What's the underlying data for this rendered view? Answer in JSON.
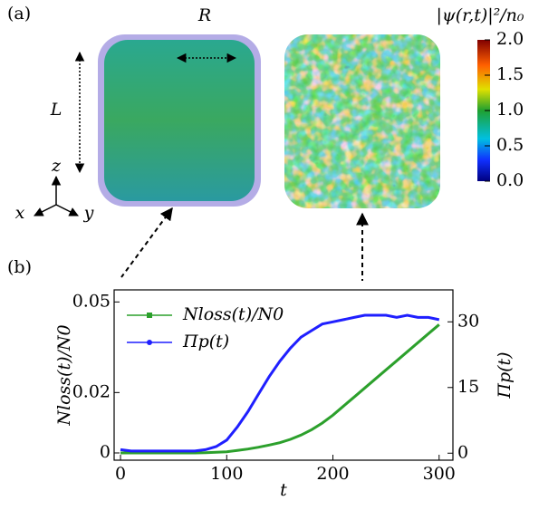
{
  "chart_data": [
    {
      "type": "colorbar",
      "panel_label": "(a)",
      "title": "|ψ(r,t)|²/n₀",
      "annotations": {
        "R": "R",
        "L": "L",
        "x": "x",
        "y": "y",
        "z": "z"
      },
      "lim": [
        0,
        2
      ],
      "ticks": [
        {
          "value": 0,
          "label": "0.0"
        },
        {
          "value": 0.5,
          "label": "0.5"
        },
        {
          "value": 1,
          "label": "1.0"
        },
        {
          "value": 1.5,
          "label": "1.5"
        },
        {
          "value": 2,
          "label": "2.0"
        }
      ]
    },
    {
      "type": "line",
      "panel_label": "(b)",
      "xlabel": "t",
      "ylabel": "Nloss(t)/N0",
      "y2label": "Πp(t)",
      "x": [
        0,
        10,
        20,
        30,
        40,
        50,
        60,
        70,
        80,
        90,
        100,
        110,
        120,
        130,
        140,
        150,
        160,
        170,
        180,
        190,
        200,
        210,
        220,
        230,
        240,
        250,
        260,
        270,
        280,
        290,
        300
      ],
      "series": [
        {
          "name": "Nloss(t)/N0",
          "color": "#2ca02c",
          "marker": "square",
          "values": [
            0,
            0,
            0,
            0,
            0,
            0,
            0,
            0,
            0.0001,
            0.0002,
            0.0004,
            0.0008,
            0.0013,
            0.0019,
            0.0026,
            0.0034,
            0.0045,
            0.0059,
            0.0077,
            0.0099,
            0.0125,
            0.0155,
            0.0185,
            0.0215,
            0.0245,
            0.0275,
            0.0305,
            0.0335,
            0.0365,
            0.0395,
            0.0425
          ]
        },
        {
          "name": "Πp(t)",
          "color": "#1f1fff",
          "marker": "circle",
          "axis": "y2",
          "values": [
            0.8,
            0.5,
            0.5,
            0.5,
            0.5,
            0.5,
            0.5,
            0.5,
            0.8,
            1.5,
            3,
            6,
            9.5,
            13.5,
            17.5,
            21,
            24,
            26.5,
            28,
            29.5,
            30,
            30.5,
            31,
            31.5,
            31.5,
            31.5,
            31,
            31.5,
            31,
            31,
            30.5
          ]
        }
      ],
      "xlim": [
        -6,
        313
      ],
      "xticks": [
        0,
        100,
        200,
        300
      ],
      "ylim": [
        -0.0024,
        0.054
      ],
      "yticks": [
        0,
        0.02,
        0.05
      ],
      "y2lim": [
        -1.6,
        37.3
      ],
      "y2ticks": [
        0,
        15,
        30
      ],
      "legend": "upper-left"
    }
  ]
}
